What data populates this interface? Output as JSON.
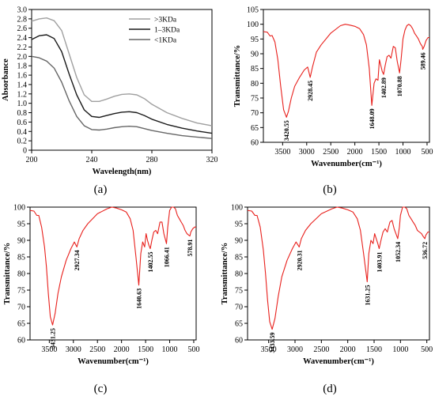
{
  "panel_labels": [
    "(a)",
    "(b)",
    "(c)",
    "(d)"
  ],
  "chart_data": [
    {
      "panel": "(a)",
      "type": "line",
      "xlabel": "Wavelength(nm)",
      "ylabel": "Absorbance",
      "xlim": [
        200,
        320
      ],
      "ylim": [
        0,
        3.0
      ],
      "xticks": [
        200,
        240,
        280,
        320
      ],
      "yticks": [
        0,
        0.2,
        0.4,
        0.6,
        0.8,
        1.0,
        1.2,
        1.4,
        1.6,
        1.8,
        2.0,
        2.2,
        2.4,
        2.6,
        2.8,
        3.0
      ],
      "ytick_labels": [
        "0",
        "0.2",
        "0.4",
        "0.6",
        "0.8",
        "1.0",
        "1.2",
        "1.4",
        "1.6",
        "1.8",
        "2.0",
        "2.2",
        "2.4",
        "2.6",
        "2.8",
        "3.0"
      ],
      "legend_position": "top-right",
      "series": [
        {
          "name": ">3KDa",
          "color": "#a0a0a0",
          "x": [
            200,
            205,
            210,
            215,
            220,
            225,
            230,
            235,
            240,
            245,
            250,
            255,
            260,
            265,
            270,
            275,
            280,
            290,
            300,
            310,
            320
          ],
          "y": [
            2.75,
            2.8,
            2.82,
            2.76,
            2.55,
            2.05,
            1.55,
            1.18,
            1.04,
            1.04,
            1.09,
            1.15,
            1.19,
            1.2,
            1.18,
            1.1,
            0.98,
            0.8,
            0.68,
            0.58,
            0.52
          ]
        },
        {
          "name": "1–3KDa",
          "color": "#1a1a1a",
          "x": [
            200,
            205,
            210,
            215,
            220,
            225,
            230,
            235,
            240,
            245,
            250,
            255,
            260,
            265,
            270,
            275,
            280,
            290,
            300,
            310,
            320
          ],
          "y": [
            2.36,
            2.44,
            2.46,
            2.38,
            2.1,
            1.62,
            1.18,
            0.86,
            0.72,
            0.7,
            0.74,
            0.78,
            0.81,
            0.82,
            0.8,
            0.74,
            0.66,
            0.55,
            0.47,
            0.41,
            0.36
          ]
        },
        {
          "name": "<1KDa",
          "color": "#666666",
          "x": [
            200,
            205,
            210,
            215,
            220,
            225,
            230,
            235,
            240,
            245,
            250,
            255,
            260,
            265,
            270,
            275,
            280,
            290,
            300,
            310,
            320
          ],
          "y": [
            2.0,
            1.97,
            1.9,
            1.75,
            1.45,
            1.05,
            0.72,
            0.52,
            0.44,
            0.43,
            0.45,
            0.48,
            0.5,
            0.51,
            0.5,
            0.46,
            0.42,
            0.36,
            0.31,
            0.28,
            0.25
          ]
        }
      ]
    },
    {
      "panel": "(b)",
      "type": "line",
      "xlabel": "Wavenumber(cm⁻¹)",
      "ylabel": "Transmittance/%",
      "xlim": [
        3900,
        450
      ],
      "ylim": [
        60,
        105
      ],
      "xticks": [
        3500,
        3000,
        2500,
        2000,
        1500,
        1000,
        500
      ],
      "yticks": [
        60,
        65,
        70,
        75,
        80,
        85,
        90,
        95,
        100,
        105
      ],
      "series": [
        {
          "name": "",
          "color": "#e8201c",
          "x": [
            3900,
            3820,
            3760,
            3720,
            3660,
            3600,
            3540,
            3480,
            3420,
            3380,
            3320,
            3250,
            3150,
            3050,
            2980,
            2928,
            2880,
            2800,
            2700,
            2500,
            2300,
            2200,
            2100,
            2000,
            1900,
            1820,
            1760,
            1700,
            1648,
            1600,
            1560,
            1520,
            1490,
            1460,
            1430,
            1403,
            1370,
            1330,
            1290,
            1250,
            1200,
            1160,
            1120,
            1071,
            1040,
            1000,
            960,
            920,
            880,
            840,
            800,
            760,
            720,
            680,
            640,
            600,
            589,
            560,
            520,
            480,
            450
          ],
          "y": [
            97.5,
            97.3,
            96,
            96.2,
            94,
            88,
            79,
            71,
            68.5,
            70.5,
            75,
            79,
            82,
            84.5,
            85.5,
            82,
            85.5,
            90.5,
            93,
            97,
            99.5,
            100,
            99.7,
            99.3,
            98.5,
            96.5,
            93,
            85,
            72.5,
            80,
            81.5,
            81,
            88,
            86,
            84,
            83,
            86,
            89,
            89.5,
            88.5,
            92.5,
            92,
            87.5,
            83.5,
            88,
            95,
            98,
            99.5,
            100,
            99.5,
            98.5,
            97,
            96,
            95,
            93.5,
            92.5,
            91.5,
            92.5,
            94.5,
            95.5,
            95.5
          ]
        }
      ],
      "annotations": [
        "3420.55",
        "2928.45",
        "1648.09",
        "1402.89",
        "1070.88",
        "589.46"
      ],
      "annotation_x": [
        3420.55,
        2928.45,
        1648.09,
        1402.89,
        1070.88,
        589.46
      ],
      "annotation_y": [
        68.5,
        82,
        72.5,
        83,
        83.5,
        91.5
      ]
    },
    {
      "panel": "(c)",
      "type": "line",
      "xlabel": "Wavenumber(cm⁻¹)",
      "ylabel": "Transmittance/%",
      "xlim": [
        3900,
        450
      ],
      "ylim": [
        60,
        100
      ],
      "xticks": [
        3500,
        3000,
        2500,
        2000,
        1500,
        1000,
        500
      ],
      "yticks": [
        60,
        65,
        70,
        75,
        80,
        85,
        90,
        95,
        100
      ],
      "series": [
        {
          "name": "",
          "color": "#e8201c",
          "x": [
            3900,
            3820,
            3760,
            3720,
            3660,
            3600,
            3560,
            3520,
            3480,
            3431,
            3380,
            3320,
            3250,
            3150,
            3050,
            2980,
            2927,
            2880,
            2800,
            2700,
            2500,
            2300,
            2200,
            2100,
            2000,
            1900,
            1820,
            1760,
            1700,
            1641,
            1600,
            1560,
            1520,
            1490,
            1460,
            1430,
            1403,
            1370,
            1330,
            1290,
            1250,
            1200,
            1160,
            1120,
            1066,
            1040,
            1000,
            960,
            920,
            880,
            840,
            800,
            760,
            720,
            680,
            640,
            600,
            579,
            560,
            520,
            480,
            450
          ],
          "y": [
            99,
            98.8,
            97.5,
            97.5,
            94,
            88,
            82,
            74,
            67,
            64.5,
            68,
            74,
            79,
            84,
            87.5,
            89.5,
            88,
            90.5,
            93,
            95,
            98,
            99.5,
            100,
            99.7,
            99.2,
            98.5,
            96.5,
            93,
            85,
            76.5,
            86,
            89.5,
            88,
            92,
            90,
            88.5,
            87.5,
            90,
            92.5,
            93,
            92,
            95.5,
            95.5,
            92,
            89,
            94,
            99,
            100,
            100,
            99.5,
            97.5,
            96.5,
            95.5,
            94.5,
            93,
            92,
            91.5,
            91.3,
            92.5,
            93.5,
            94,
            94
          ]
        }
      ],
      "annotations": [
        "3431.25",
        "2927.34",
        "1640.63",
        "1402.55",
        "1066.41",
        "578.91"
      ],
      "annotation_x": [
        3431.25,
        2927.34,
        1640.63,
        1402.55,
        1066.41,
        578.91
      ],
      "annotation_y": [
        64.5,
        88,
        76.5,
        87.5,
        89,
        91.3
      ]
    },
    {
      "panel": "(d)",
      "type": "line",
      "xlabel": "Wavenumber(cm⁻¹)",
      "ylabel": "Transmittance/%",
      "xlim": [
        3900,
        450
      ],
      "ylim": [
        60,
        100
      ],
      "xticks": [
        3500,
        3000,
        2500,
        2000,
        1500,
        1000,
        500
      ],
      "yticks": [
        60,
        65,
        70,
        75,
        80,
        85,
        90,
        95,
        100
      ],
      "series": [
        {
          "name": "",
          "color": "#e8201c",
          "x": [
            3900,
            3820,
            3760,
            3720,
            3660,
            3600,
            3560,
            3520,
            3480,
            3434,
            3380,
            3320,
            3250,
            3150,
            3050,
            2980,
            2920,
            2880,
            2800,
            2700,
            2500,
            2300,
            2200,
            2100,
            2000,
            1900,
            1820,
            1760,
            1700,
            1631,
            1600,
            1560,
            1520,
            1490,
            1460,
            1430,
            1404,
            1370,
            1330,
            1290,
            1250,
            1200,
            1160,
            1120,
            1052,
            1020,
            1000,
            960,
            920,
            880,
            840,
            800,
            760,
            720,
            680,
            640,
            600,
            570,
            537,
            520,
            480,
            450
          ],
          "y": [
            99,
            98.8,
            97.5,
            97.5,
            94,
            87,
            80,
            72,
            65.5,
            63.2,
            66.5,
            73,
            79,
            84,
            87.5,
            89.5,
            88,
            90.5,
            93,
            95,
            98,
            99.5,
            100,
            99.7,
            99.2,
            98.5,
            96.5,
            93,
            86,
            77.5,
            86,
            90,
            89,
            92,
            90.5,
            89,
            87.5,
            90,
            92.5,
            93.5,
            92.5,
            95.5,
            96,
            93.5,
            90.5,
            94,
            97.5,
            100,
            100,
            99.5,
            97.5,
            96.5,
            95.5,
            94.5,
            93,
            92.5,
            92,
            91.2,
            90.5,
            91.5,
            92.5,
            92.5
          ]
        }
      ],
      "annotations": [
        "3433.59",
        "2920.31",
        "1631.25",
        "1403.91",
        "1052.34",
        "536.72"
      ],
      "annotation_x": [
        3433.59,
        2920.31,
        1631.25,
        1403.91,
        1052.34,
        536.72
      ],
      "annotation_y": [
        63.2,
        88,
        77.5,
        87.5,
        90.5,
        90.5
      ]
    }
  ]
}
